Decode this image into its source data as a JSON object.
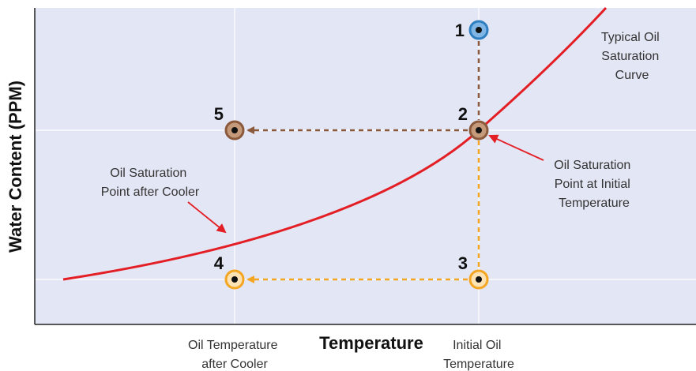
{
  "diagram": {
    "y_axis_label": "Water Content (PPM)",
    "x_axis_label": "Temperature",
    "x_tick_labels": [
      [
        "Oil Temperature",
        "after Cooler"
      ],
      [
        "Initial Oil",
        "Temperature"
      ]
    ],
    "curve_label": [
      "Typical Oil",
      "Saturation",
      "Curve"
    ],
    "annotation_cooler": [
      "Oil Saturation",
      "Point after Cooler"
    ],
    "annotation_initial": [
      "Oil Saturation",
      "Point at Initial",
      "Temperature"
    ],
    "points": [
      {
        "label": "1",
        "color": "#2f7fc1"
      },
      {
        "label": "2",
        "color": "#8b5a3c"
      },
      {
        "label": "3",
        "color": "#f4a623"
      },
      {
        "label": "4",
        "color": "#f4a623"
      },
      {
        "label": "5",
        "color": "#8b5a3c"
      }
    ],
    "colors": {
      "plot_background": "#e3e6f4",
      "curve": "#e31e24",
      "brown_path": "#8b5a3c",
      "orange_path": "#f4a623",
      "annotation_arrow": "#e31e24"
    }
  }
}
